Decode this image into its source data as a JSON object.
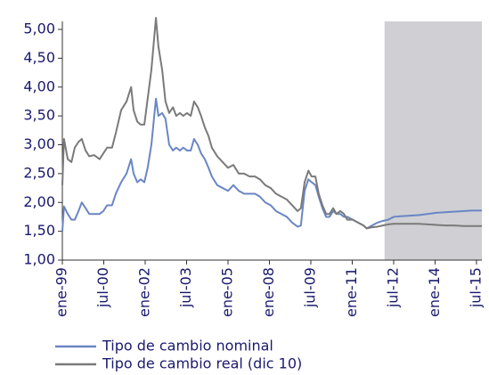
{
  "chart_data": {
    "type": "line",
    "x": [
      0,
      0.04,
      0.13,
      0.22,
      0.3,
      0.39,
      0.47,
      0.56,
      0.65,
      0.77,
      0.9,
      0.99,
      1.08,
      1.2,
      1.29,
      1.42,
      1.55,
      1.66,
      1.72,
      1.81,
      1.89,
      1.98,
      2.06,
      2.15,
      2.26,
      2.32,
      2.41,
      2.49,
      2.58,
      2.67,
      2.75,
      2.84,
      2.92,
      3.01,
      3.1,
      3.18,
      3.27,
      3.35,
      3.44,
      3.53,
      3.61,
      3.74,
      3.87,
      4,
      4.13,
      4.26,
      4.39,
      4.52,
      4.65,
      4.77,
      4.9,
      5.03,
      5.16,
      5.29,
      5.42,
      5.55,
      5.68,
      5.76,
      5.85,
      5.94,
      6.02,
      6.11,
      6.19,
      6.28,
      6.37,
      6.45,
      6.54,
      6.62,
      6.71,
      6.8,
      6.88,
      7.01,
      7.14,
      7.27,
      7.35,
      7.48,
      7.61,
      7.74,
      7.87,
      8,
      8.17,
      8.39,
      8.6,
      8.82,
      9.03,
      9.25,
      9.46,
      9.68,
      9.89,
      10.13
    ],
    "series": [
      {
        "name": "Tipo de cambio nominal",
        "color": "#6a86c4",
        "values": [
          1.5,
          1.93,
          1.8,
          1.7,
          1.7,
          1.85,
          2.0,
          1.9,
          1.8,
          1.8,
          1.8,
          1.85,
          1.95,
          1.95,
          2.15,
          2.35,
          2.5,
          2.75,
          2.5,
          2.35,
          2.4,
          2.35,
          2.6,
          3.0,
          3.8,
          3.5,
          3.55,
          3.45,
          3.0,
          2.9,
          2.95,
          2.9,
          2.95,
          2.9,
          2.9,
          3.1,
          3.0,
          2.85,
          2.75,
          2.6,
          2.45,
          2.3,
          2.25,
          2.2,
          2.3,
          2.2,
          2.15,
          2.15,
          2.15,
          2.1,
          2.0,
          1.95,
          1.85,
          1.8,
          1.75,
          1.65,
          1.58,
          1.6,
          2.2,
          2.4,
          2.35,
          2.3,
          2.1,
          1.9,
          1.75,
          1.75,
          1.85,
          1.8,
          1.8,
          1.75,
          1.75,
          1.7,
          1.65,
          1.6,
          1.55,
          1.6,
          1.65,
          1.68,
          1.7,
          1.75,
          1.76,
          1.77,
          1.78,
          1.8,
          1.82,
          1.83,
          1.84,
          1.85,
          1.86,
          1.86
        ]
      },
      {
        "name": "Tipo de cambio real (dic 10)",
        "color": "#7a7a7a",
        "values": [
          2.3,
          3.1,
          2.75,
          2.7,
          2.95,
          3.05,
          3.1,
          2.9,
          2.8,
          2.82,
          2.75,
          2.85,
          2.95,
          2.95,
          3.2,
          3.6,
          3.75,
          4.0,
          3.6,
          3.4,
          3.35,
          3.35,
          3.8,
          4.3,
          5.2,
          4.7,
          4.3,
          3.75,
          3.55,
          3.65,
          3.5,
          3.55,
          3.5,
          3.55,
          3.5,
          3.75,
          3.65,
          3.5,
          3.3,
          3.15,
          2.95,
          2.8,
          2.7,
          2.6,
          2.65,
          2.5,
          2.5,
          2.45,
          2.45,
          2.4,
          2.3,
          2.25,
          2.15,
          2.1,
          2.05,
          1.95,
          1.85,
          1.9,
          2.35,
          2.55,
          2.45,
          2.45,
          2.15,
          1.95,
          1.8,
          1.8,
          1.9,
          1.8,
          1.85,
          1.8,
          1.7,
          1.7,
          1.65,
          1.6,
          1.55,
          1.57,
          1.58,
          1.6,
          1.62,
          1.63,
          1.63,
          1.63,
          1.63,
          1.62,
          1.61,
          1.6,
          1.6,
          1.59,
          1.59,
          1.59
        ]
      }
    ],
    "xlim": [
      0,
      10.13
    ],
    "xticks": [
      {
        "value": 0,
        "label": "ene-99"
      },
      {
        "value": 1,
        "label": "jul-00"
      },
      {
        "value": 2,
        "label": "ene-02"
      },
      {
        "value": 3,
        "label": "jul-03"
      },
      {
        "value": 4,
        "label": "ene-05"
      },
      {
        "value": 5,
        "label": "ene-08"
      },
      {
        "value": 6,
        "label": "jul-09"
      },
      {
        "value": 7,
        "label": "ene-11"
      },
      {
        "value": 8,
        "label": "jul-12"
      },
      {
        "value": 9,
        "label": "ene-14"
      },
      {
        "value": 10,
        "label": "jul-15"
      }
    ],
    "ylim": [
      1,
      5
    ],
    "yticks": [
      {
        "value": 1,
        "label": "1,00"
      },
      {
        "value": 1.5,
        "label": "1,50"
      },
      {
        "value": 2,
        "label": "2,00"
      },
      {
        "value": 2.5,
        "label": "2,50"
      },
      {
        "value": 3,
        "label": "3,00"
      },
      {
        "value": 3.5,
        "label": "3,50"
      },
      {
        "value": 4,
        "label": "4,00"
      },
      {
        "value": 4.5,
        "label": "4,50"
      },
      {
        "value": 5,
        "label": "5,00"
      }
    ],
    "shaded_range": [
      7.78,
      10.13
    ],
    "shade_color": "#d0d0d4",
    "grid": false
  }
}
